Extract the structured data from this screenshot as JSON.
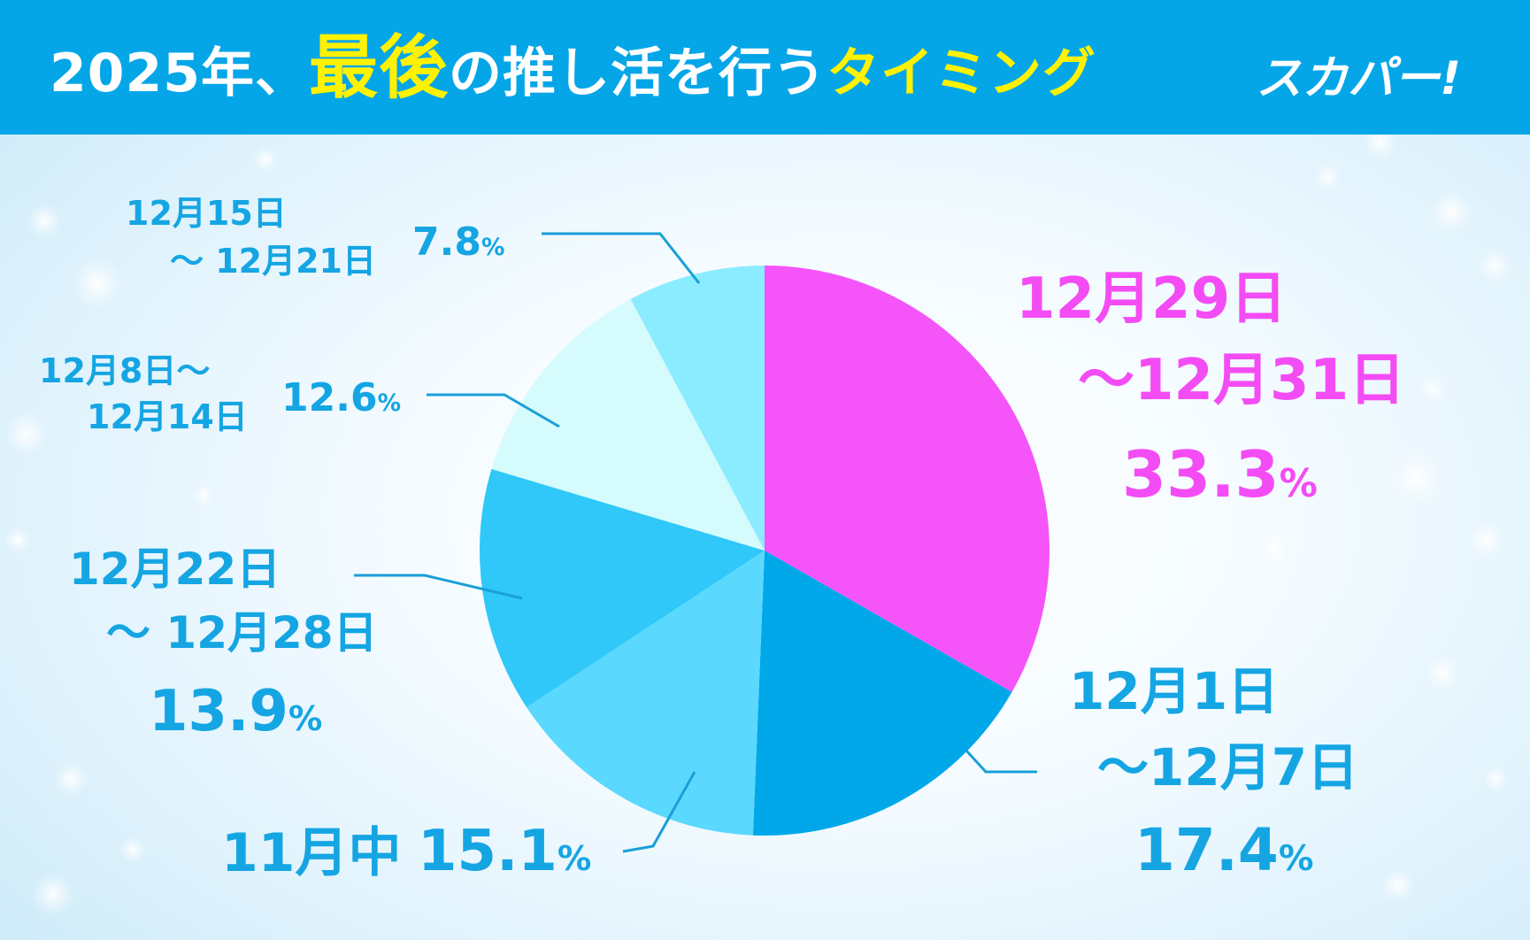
{
  "header": {
    "title_part1": "2025年、",
    "title_part2": "最後",
    "title_part3": "の推し活を行う",
    "title_part4": "タイミング",
    "brand": "スカパー!"
  },
  "colors": {
    "header_bg": "#05a6e8",
    "highlight": "#fff200",
    "pink": "#f44cf4",
    "label_blue": "#15a5e3",
    "leader_line": "#1a9fd8"
  },
  "chart_data": {
    "type": "pie",
    "slices": [
      {
        "label_line1": "12月29日",
        "label_line2": "〜12月31日",
        "value": 33.3,
        "value_text": "33.3",
        "unit": "%",
        "color": "#f554f9"
      },
      {
        "label_line1": "12月1日",
        "label_line2": "〜12月7日",
        "value": 17.4,
        "value_text": "17.4",
        "unit": "%",
        "color": "#00a8ea"
      },
      {
        "label_line1": "11月中",
        "label_line2": "",
        "value": 15.1,
        "value_text": "15.1",
        "unit": "%",
        "color": "#5ad8fd"
      },
      {
        "label_line1": "12月22日",
        "label_line2": "〜 12月28日",
        "value": 13.9,
        "value_text": "13.9",
        "unit": "%",
        "color": "#2fc8f9"
      },
      {
        "label_line1": "12月8日〜",
        "label_line2": "12月14日",
        "value": 12.6,
        "value_text": "12.6",
        "unit": "%",
        "color": "#d5fbfd"
      },
      {
        "label_line1": "12月15日",
        "label_line2": "〜 12月21日",
        "value": 7.8,
        "value_text": "7.8",
        "unit": "%",
        "color": "#8cecff"
      }
    ]
  }
}
